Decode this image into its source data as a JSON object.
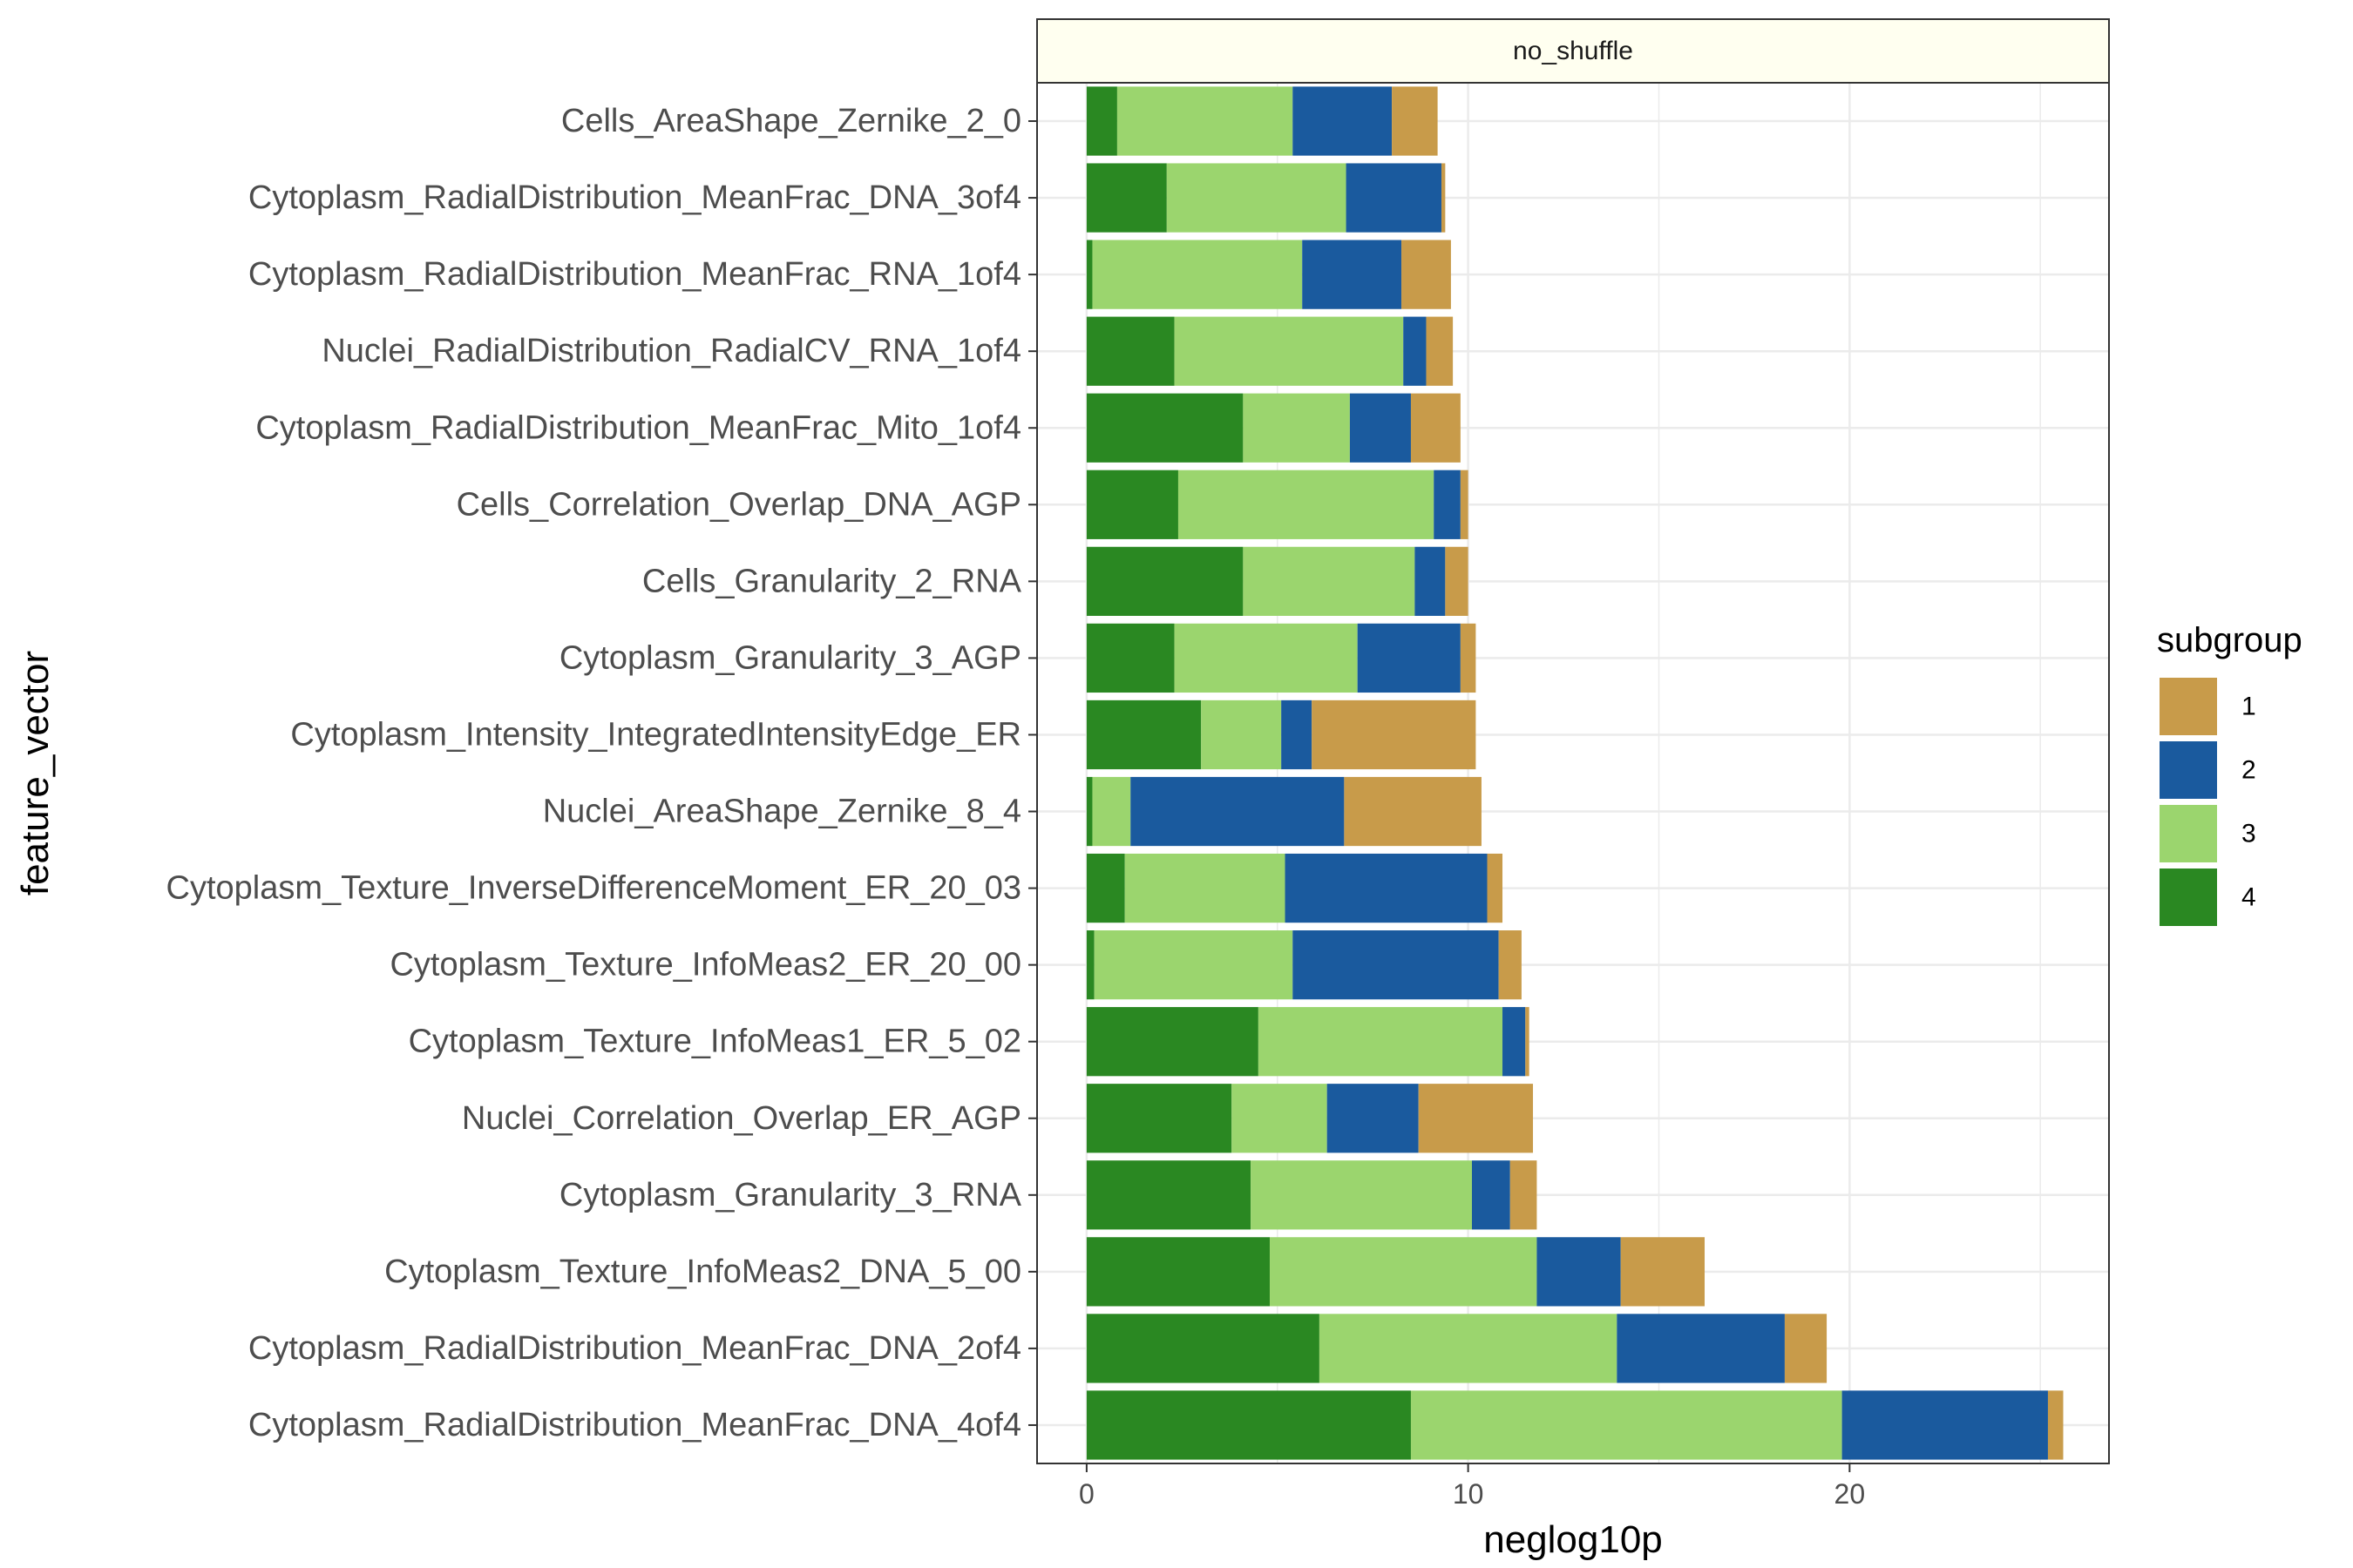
{
  "chart_data": {
    "type": "bar",
    "orientation": "horizontal",
    "stacked": true,
    "facet": "no_shuffle",
    "xlabel": "neglog10p",
    "ylabel": "feature_vector",
    "xlim": [
      -1.3,
      26.8
    ],
    "xticks": [
      0,
      10,
      20
    ],
    "grid": true,
    "legend": {
      "title": "subgroup",
      "position": "right",
      "entries": [
        "1",
        "2",
        "3",
        "4"
      ]
    },
    "stack_order": [
      "4",
      "3",
      "2",
      "1"
    ],
    "colors": {
      "1": "#C89B4A",
      "2": "#1A5A9E",
      "3": "#9BD56E",
      "4": "#2A8822"
    },
    "categories": [
      "Cells_AreaShape_Zernike_2_0",
      "Cytoplasm_RadialDistribution_MeanFrac_DNA_3of4",
      "Cytoplasm_RadialDistribution_MeanFrac_RNA_1of4",
      "Nuclei_RadialDistribution_RadialCV_RNA_1of4",
      "Cytoplasm_RadialDistribution_MeanFrac_Mito_1of4",
      "Cells_Correlation_Overlap_DNA_AGP",
      "Cells_Granularity_2_RNA",
      "Cytoplasm_Granularity_3_AGP",
      "Cytoplasm_Intensity_IntegratedIntensityEdge_ER",
      "Nuclei_AreaShape_Zernike_8_4",
      "Cytoplasm_Texture_InverseDifferenceMoment_ER_20_03",
      "Cytoplasm_Texture_InfoMeas2_ER_20_00",
      "Cytoplasm_Texture_InfoMeas1_ER_5_02",
      "Nuclei_Correlation_Overlap_ER_AGP",
      "Cytoplasm_Granularity_3_RNA",
      "Cytoplasm_Texture_InfoMeas2_DNA_5_00",
      "Cytoplasm_RadialDistribution_MeanFrac_DNA_2of4",
      "Cytoplasm_RadialDistribution_MeanFrac_DNA_4of4"
    ],
    "series": [
      {
        "name": "4",
        "values": [
          0.8,
          2.1,
          0.15,
          2.3,
          4.1,
          2.4,
          4.1,
          2.3,
          3.0,
          0.15,
          1.0,
          0.2,
          4.5,
          3.8,
          4.3,
          4.8,
          6.1,
          8.5
        ]
      },
      {
        "name": "3",
        "values": [
          4.6,
          4.7,
          5.5,
          6.0,
          2.8,
          6.7,
          4.5,
          4.8,
          2.1,
          1.0,
          4.2,
          5.2,
          6.4,
          2.5,
          5.8,
          7.0,
          7.8,
          11.3
        ]
      },
      {
        "name": "2",
        "values": [
          2.6,
          2.5,
          2.6,
          0.6,
          1.6,
          0.7,
          0.8,
          2.7,
          0.8,
          5.6,
          5.3,
          5.4,
          0.6,
          2.4,
          1.0,
          2.2,
          4.4,
          5.4
        ]
      },
      {
        "name": "1",
        "values": [
          1.2,
          0.1,
          1.3,
          0.7,
          1.3,
          0.2,
          0.6,
          0.4,
          4.3,
          3.6,
          0.4,
          0.6,
          0.1,
          3.0,
          0.7,
          2.2,
          1.1,
          0.4
        ]
      }
    ]
  }
}
